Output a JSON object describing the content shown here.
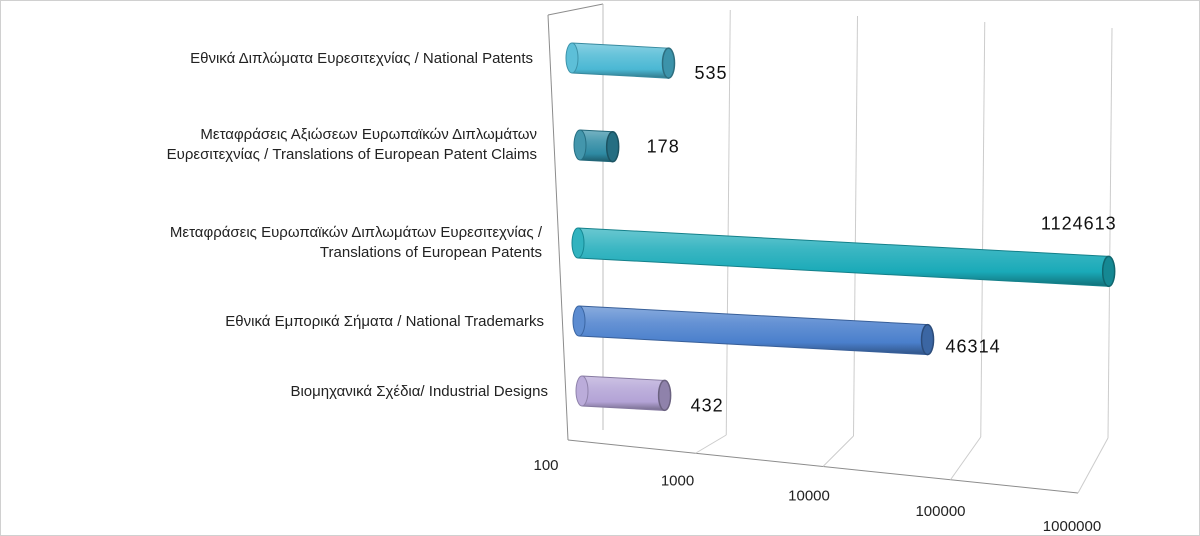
{
  "chart_data": {
    "type": "bar",
    "orientation": "horizontal",
    "style": "3d-cylinder",
    "x_scale": "log",
    "xlim": [
      100,
      1000000
    ],
    "x_ticks": [
      "100",
      "1000",
      "10000",
      "100000",
      "1000000"
    ],
    "grid": true,
    "legend": "none",
    "categories": [
      [
        "Εθνικά Διπλώματα Ευρεσιτεχνίας / National Patents"
      ],
      [
        "Μεταφράσεις Αξιώσεων Ευρωπαϊκών Διπλωμάτων",
        "Ευρεσιτεχνίας / Translations of European Patent Claims"
      ],
      [
        "Μεταφράσεις Ευρωπαϊκών Διπλωμάτων Ευρεσιτεχνίας /",
        "Translations of European Patents"
      ],
      [
        "Εθνικά Εμπορικά Σήματα / National Trademarks"
      ],
      [
        "Βιομηχανικά Σχέδια/ Industrial Designs"
      ]
    ],
    "values": [
      535,
      178,
      1124613,
      46314,
      432
    ],
    "data_labels": [
      "535",
      "178",
      "1124613",
      "46314",
      "432"
    ],
    "colors": [
      "#4bb8d4",
      "#2e8aa3",
      "#1aaab8",
      "#4a7fcc",
      "#b3a3d6"
    ]
  }
}
